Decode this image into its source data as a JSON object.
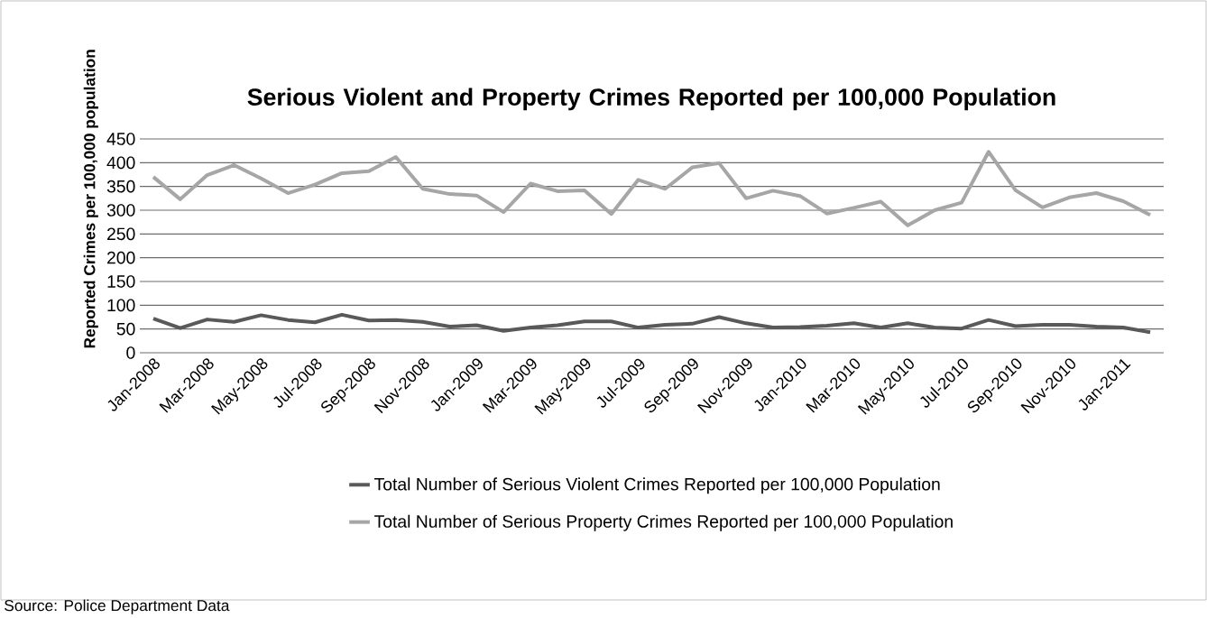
{
  "chart_data": {
    "type": "line",
    "title": "Serious Violent and Property Crimes Reported per 100,000 Population",
    "ylabel": "Reported Crimes per 100,000 population",
    "categories": [
      "Jan-2008",
      null,
      "Mar-2008",
      null,
      "May-2008",
      null,
      "Jul-2008",
      null,
      "Sep-2008",
      null,
      "Nov-2008",
      null,
      "Jan-2009",
      null,
      "Mar-2009",
      null,
      "May-2009",
      null,
      "Jul-2009",
      null,
      "Sep-2009",
      null,
      "Nov-2009",
      null,
      "Jan-2010",
      null,
      "Mar-2010",
      null,
      "May-2010",
      null,
      "Jul-2010",
      null,
      "Sep-2010",
      null,
      "Nov-2010",
      null,
      "Jan-2011",
      null
    ],
    "series": [
      {
        "name": "Total Number of Serious Violent Crimes Reported per 100,000 Population",
        "color": "#595959",
        "values": [
          72,
          52,
          70,
          65,
          79,
          69,
          64,
          80,
          68,
          69,
          65,
          55,
          58,
          46,
          53,
          58,
          66,
          66,
          53,
          59,
          61,
          75,
          62,
          53,
          54,
          57,
          62,
          53,
          62,
          53,
          51,
          69,
          56,
          59,
          59,
          55,
          53,
          43
        ]
      },
      {
        "name": "Total Number of Serious Property Crimes Reported per 100,000 Population",
        "color": "#a6a6a6",
        "values": [
          370,
          323,
          374,
          395,
          367,
          336,
          354,
          378,
          382,
          412,
          345,
          334,
          331,
          296,
          356,
          340,
          342,
          292,
          364,
          345,
          390,
          399,
          325,
          341,
          330,
          293,
          305,
          318,
          268,
          300,
          316,
          423,
          342,
          306,
          327,
          336,
          319,
          290
        ]
      }
    ],
    "ylim": [
      0,
      450
    ],
    "yticks": [
      0,
      50,
      100,
      150,
      200,
      250,
      300,
      350,
      400,
      450
    ],
    "grid": "y",
    "legend": "bottom",
    "marker": "none",
    "line_style": "solid",
    "annotations": [
      "Source: Police Department Data"
    ]
  }
}
